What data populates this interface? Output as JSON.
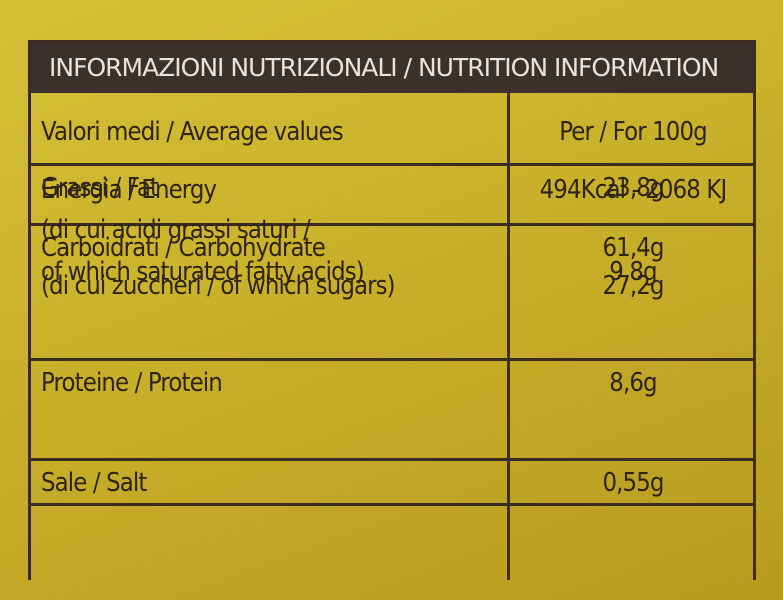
{
  "header": {
    "title": "INFORMAZIONI NUTRIZIONALI / NUTRITION INFORMATION"
  },
  "table": {
    "columns": [
      "Valori medi / Average values",
      "Per / For 100g"
    ],
    "rows": [
      {
        "label": [
          "Energia / Energy"
        ],
        "value": [
          "494Kcal - 2068 KJ"
        ]
      },
      {
        "label": [
          "Grassi / Fat",
          "(di cui acidi grassi saturi /",
          "of which saturated fatty acids)"
        ],
        "value": [
          "23,8g",
          "9,8g"
        ]
      },
      {
        "label": [
          "Carboidrati / Carbohydrate",
          "(di cui zuccheri / of which sugars)"
        ],
        "value": [
          "61,4g",
          "27,2g"
        ]
      },
      {
        "label": [
          "Proteine / Protein"
        ],
        "value": [
          "8,6g"
        ]
      },
      {
        "label": [
          "Sale / Salt"
        ],
        "value": [
          "0,55g"
        ]
      }
    ]
  }
}
